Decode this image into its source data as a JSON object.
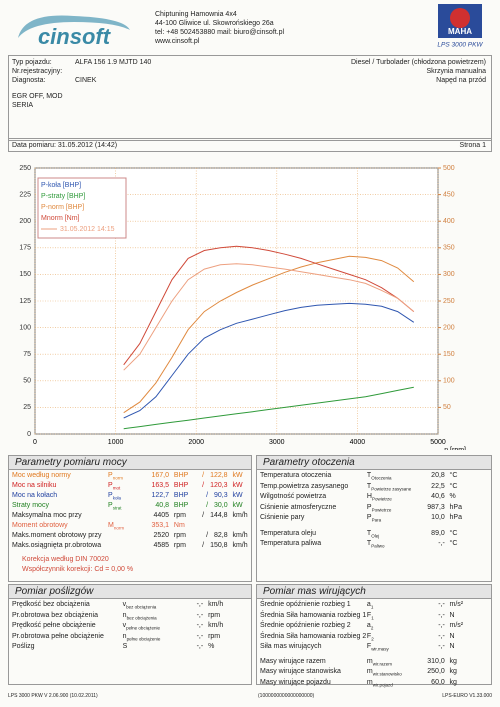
{
  "header": {
    "logo": "cinsoft",
    "company": "Chiptuning  Hamownia 4x4",
    "address": "44-100 Gliwice ul. Skowrońskiego 26a",
    "contact": "tel: +48 502453880  mail: biuro@cinsoft.pl",
    "web": "www.cinsoft.pl",
    "brand": "MAHA",
    "model": "LPS 3000 PKW"
  },
  "vehicle": {
    "fields": [
      {
        "label": "Typ pojazdu:",
        "value": "ALFA 156 1.9 MJTD 140"
      },
      {
        "label": "Nr.rejestracyjny:"
      },
      {
        "label": "Diagnosta:",
        "value": "CINEK"
      }
    ],
    "specs": [
      "Diesel / Turbolader (chłodzona powietrzem)",
      "Skrzynia manualna",
      "Napęd na przód"
    ],
    "notes": [
      "EGR OFF, MOD",
      "SERIA"
    ],
    "date": "Data pomiaru: 31.05.2012 (14:42)",
    "page": "Strona 1"
  },
  "chart_data": {
    "type": "line",
    "x_label": "n [rpm]",
    "xlim": [
      0,
      5000
    ],
    "xticks": [
      0,
      1000,
      2000,
      3000,
      4000,
      5000
    ],
    "ylim": [
      0,
      250
    ],
    "yticks": [
      0,
      25,
      50,
      75,
      100,
      125,
      150,
      175,
      200,
      225,
      250
    ],
    "y2lim": [
      0,
      500
    ],
    "y2ticks": [
      50,
      100,
      150,
      200,
      250,
      300,
      350,
      400,
      450,
      500
    ],
    "grid": true,
    "x": [
      1100,
      1300,
      1500,
      1700,
      1900,
      2100,
      2300,
      2500,
      2700,
      2900,
      3100,
      3300,
      3500,
      3700,
      3900,
      4100,
      4300,
      4500,
      4700
    ],
    "series": [
      {
        "name": "P-koła [BHP]",
        "color": "#3057b0",
        "values": [
          15,
          22,
          35,
          55,
          75,
          90,
          98,
          104,
          108,
          112,
          116,
          119,
          121,
          122,
          122.7,
          122,
          120,
          115,
          105
        ]
      },
      {
        "name": "P-straty [BHP]",
        "color": "#2f9a3a",
        "values": [
          5,
          7,
          9,
          11,
          13,
          15,
          17,
          19,
          21,
          23,
          25,
          27,
          29,
          31,
          33,
          35,
          38,
          41,
          44
        ]
      },
      {
        "name": "P-norm [BHP]",
        "color": "#e08a40",
        "values": [
          20,
          30,
          48,
          72,
          98,
          115,
          125,
          133,
          140,
          146,
          152,
          157,
          161,
          164,
          167,
          166,
          163,
          156,
          143
        ]
      },
      {
        "name": "Mnorm [Nm]",
        "color": "#d04a3a",
        "axis": "y2",
        "values": [
          130,
          170,
          230,
          290,
          330,
          345,
          350,
          353,
          350,
          345,
          338,
          330,
          320,
          310,
          300,
          290,
          275,
          255,
          230
        ]
      },
      {
        "name": "31.05.2012 14:15",
        "color": "#eda080",
        "axis": "y2",
        "values": [
          120,
          150,
          200,
          250,
          290,
          310,
          318,
          320,
          318,
          314,
          310,
          305,
          300,
          295,
          290,
          283,
          270,
          255,
          230
        ]
      }
    ]
  },
  "sections": [
    {
      "title": "Parametry pomiaru mocy",
      "rows": [
        {
          "label": "Moc według normy",
          "sym": "P",
          "sub": "norm",
          "v": "167,0",
          "u": "BHP",
          "v2": "122,8",
          "u2": "kW",
          "color": "#e0781e"
        },
        {
          "label": "Moc na silniku",
          "sym": "P",
          "sub": "mot",
          "v": "163,5",
          "u": "BHP",
          "v2": "120,3",
          "u2": "kW",
          "color": "#d02020"
        },
        {
          "label": "Moc na kołach",
          "sym": "P",
          "sub": "koła",
          "v": "122,7",
          "u": "BHP",
          "v2": "90,3",
          "u2": "kW",
          "color": "#2040a0"
        },
        {
          "label": "Straty mocy",
          "sym": "P",
          "sub": "strat",
          "v": "40,8",
          "u": "BHP",
          "v2": "30,0",
          "u2": "kW",
          "color": "#208020"
        },
        {
          "label": "Maksymalna moc przy",
          "v": "4405",
          "u": "rpm",
          "v2": "144,8",
          "u2": "km/h"
        },
        {
          "label": "Moment obrotowy",
          "sym": "M",
          "sub": "norm",
          "v": "353,1",
          "u": "Nm",
          "color": "#e06040"
        },
        {
          "label": "Maks.moment obrotowy przy",
          "v": "2520",
          "u": "rpm",
          "v2": "82,8",
          "u2": "km/h"
        },
        {
          "label": "Maks.osiągnięta pr.obrotowa",
          "v": "4585",
          "u": "rpm",
          "v2": "150,8",
          "u2": "km/h"
        }
      ],
      "notes": [
        "Korekcja według DIN 70020",
        "Współczynnik korekcji: Cd = 0,00 %"
      ]
    },
    {
      "title": "Parametry otoczenia",
      "rows": [
        {
          "label": "Temperatura otoczenia",
          "sym": "T",
          "sub": "Otoczenia",
          "v": "20,8",
          "u": "°C"
        },
        {
          "label": "Temp.powietrza zasysanego",
          "sym": "T",
          "sub": "Powietrze zasysane",
          "v": "22,5",
          "u": "°C"
        },
        {
          "label": "Wilgotność powietrza",
          "sym": "H",
          "sub": "Powietrze",
          "v": "40,6",
          "u": "%"
        },
        {
          "label": "Ciśnienie atmosferyczne",
          "sym": "P",
          "sub": "Powietrze",
          "v": "987,3",
          "u": "hPa"
        },
        {
          "label": "Ciśnienie pary",
          "sym": "P",
          "sub": "Para",
          "v": "10,0",
          "u": "hPa"
        },
        {
          "label": "Temperatura oleju",
          "sym": "T",
          "sub": "Olej",
          "v": "89,0",
          "u": "°C"
        },
        {
          "label": "Temperatura paliwa",
          "sym": "T",
          "sub": "Paliwo",
          "v": "-,-",
          "u": "°C"
        }
      ]
    },
    {
      "title": "Pomiar poślizgów",
      "rows": [
        {
          "label": "Prędkość bez obciążenia",
          "sym": "v",
          "sub": "bez obciążenia",
          "v": "-,-",
          "u": "km/h"
        },
        {
          "label": "Pr.obrotowa bez obciążenia",
          "sym": "n",
          "sub": "bez obciążenia",
          "v": "-,-",
          "u": "rpm"
        },
        {
          "label": "Prędkość pełne obciążenie",
          "sym": "v",
          "sub": "pełne obciążenie",
          "v": "-,-",
          "u": "km/h"
        },
        {
          "label": "Pr.obrotowa pełne obciążenie",
          "sym": "n",
          "sub": "pełne obciążenie",
          "v": "-,-",
          "u": "rpm"
        },
        {
          "label": "Poślizg",
          "sym": "S",
          "v": "-,-",
          "u": "%"
        }
      ]
    },
    {
      "title": "Pomiar mas wirujących",
      "rows": [
        {
          "label": "Średnie opóźnienie rozbieg 1",
          "sym": "a",
          "sub": "1",
          "v": "-,-",
          "u": "m/s²"
        },
        {
          "label": "Średnia Siła hamowania rozbieg 1",
          "sym": "F",
          "sub": "1",
          "v": "-,-",
          "u": "N"
        },
        {
          "label": "Średnie opóźnienie rozbieg 2",
          "sym": "a",
          "sub": "2",
          "v": "-,-",
          "u": "m/s²"
        },
        {
          "label": "Średnia Siła hamowania rozbieg 2",
          "sym": "F",
          "sub": "2",
          "v": "-,-",
          "u": "N"
        },
        {
          "label": "Siła mas wirujących",
          "sym": "F",
          "sub": "wir.masy",
          "v": "-,-",
          "u": "N"
        },
        {
          "label": "Masy wirujące razem",
          "sym": "m",
          "sub": "wir.razem",
          "v": "310,0",
          "u": "kg"
        },
        {
          "label": "Masy wirujące stanowiska",
          "sym": "m",
          "sub": "wir.stanowisko",
          "v": "250,0",
          "u": "kg"
        },
        {
          "label": "Masy wirujące pojazdu",
          "sym": "m",
          "sub": "wir.pojazd",
          "v": "60,0",
          "u": "kg"
        }
      ]
    }
  ],
  "footer": [
    "LPS 3000 PKW V 2.06.900 (10.02.2011)",
    "(1000000000000000000)",
    "LPS-EURO V1.33.000"
  ]
}
